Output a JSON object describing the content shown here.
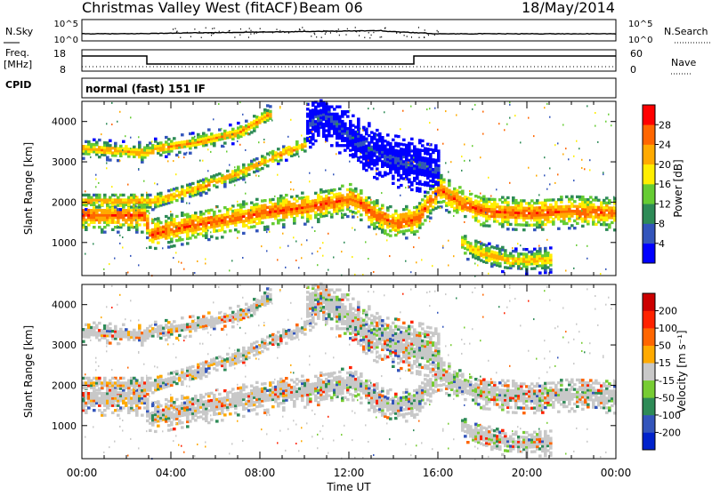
{
  "header": {
    "station": "Christmas Valley West (fitACF)",
    "beam": "Beam 06",
    "date": "18/May/2014"
  },
  "labels": {
    "nsky": "N.Sky",
    "nsearch": "N.Search",
    "freq_line1": "Freq.",
    "freq_line2": "[MHz]",
    "nave": "Nave",
    "cpid": "CPID",
    "cpid_value": "normal (fast) 151 IF"
  },
  "noise_axis": {
    "left_ticks": [
      "10^5",
      "10^0"
    ],
    "right_ticks": [
      "10^5",
      "10^0"
    ]
  },
  "freq_axis": {
    "left_ticks": [
      "18",
      "8"
    ],
    "right_ticks": [
      "60",
      "0"
    ]
  },
  "chart_data": [
    {
      "type": "heatmap",
      "name": "power",
      "ylabel": "Slant Range [km]",
      "xlabel": "",
      "ylim": [
        180,
        4500
      ],
      "yticks": [
        "1000",
        "2000",
        "3000",
        "4000"
      ],
      "x_ticks": [
        "00:00",
        "04:00",
        "08:00",
        "12:00",
        "16:00",
        "20:00",
        "00:00"
      ],
      "colorbar": {
        "label": "Power [dB]",
        "ticks": [
          "4",
          "8",
          "12",
          "16",
          "20",
          "24",
          "28"
        ],
        "colors": [
          "#0000ff",
          "#3355bb",
          "#2e8b57",
          "#66cc33",
          "#ffee00",
          "#ffaa00",
          "#ff6600",
          "#ff0000"
        ]
      },
      "bands": [
        {
          "t": [
            0.0,
            2.8,
            3.0,
            4.0,
            6.0,
            8.0,
            10.0,
            11.0,
            12.0,
            12.5,
            13.0,
            14.0,
            15.0,
            16.0,
            17.0,
            18.0,
            20.0,
            22.0,
            24.0
          ],
          "r": [
            1650,
            1650,
            1150,
            1300,
            1500,
            1700,
            1850,
            1950,
            2050,
            1950,
            1700,
            1450,
            1550,
            2300,
            1950,
            1750,
            1700,
            1750,
            1700
          ],
          "w": 260,
          "db": 27
        },
        {
          "t": [
            0.0,
            3.0,
            3.2,
            5.0,
            7.0,
            9.0,
            10.0
          ],
          "r": [
            2000,
            2000,
            2000,
            2300,
            2700,
            3200,
            3400
          ],
          "w": 130,
          "db": 24
        },
        {
          "t": [
            0.0,
            3.0,
            3.2,
            5.0,
            7.0,
            8.5
          ],
          "r": [
            3300,
            3200,
            3300,
            3450,
            3700,
            4200
          ],
          "w": 150,
          "db": 23
        },
        {
          "t": [
            10.0,
            11.0,
            12.0,
            13.0,
            14.0,
            15.0,
            16.0
          ],
          "r": [
            3950,
            4100,
            3600,
            3250,
            3000,
            2900,
            2800
          ],
          "w": 400,
          "db": 6
        },
        {
          "t": [
            17.0,
            18.0,
            19.0,
            20.0,
            21.0
          ],
          "r": [
            950,
            700,
            550,
            520,
            560
          ],
          "w": 200,
          "db": 22
        }
      ]
    },
    {
      "type": "heatmap",
      "name": "velocity",
      "ylabel": "Slant Range [km]",
      "xlabel": "Time UT",
      "ylim": [
        180,
        4500
      ],
      "yticks": [
        "1000",
        "2000",
        "3000",
        "4000"
      ],
      "x_ticks": [
        "00:00",
        "04:00",
        "08:00",
        "12:00",
        "16:00",
        "20:00",
        "00:00"
      ],
      "colorbar": {
        "label": "Velocity [m s⁻¹]",
        "ticks": [
          "200",
          "100",
          "50",
          "15",
          "-15",
          "-50",
          "-100",
          "-200"
        ],
        "colors": [
          "#0022cc",
          "#3355bb",
          "#2e8b57",
          "#77cc33",
          "#c8c8c8",
          "#ffaa00",
          "#ff6600",
          "#ff2200",
          "#cc0000"
        ]
      }
    }
  ]
}
